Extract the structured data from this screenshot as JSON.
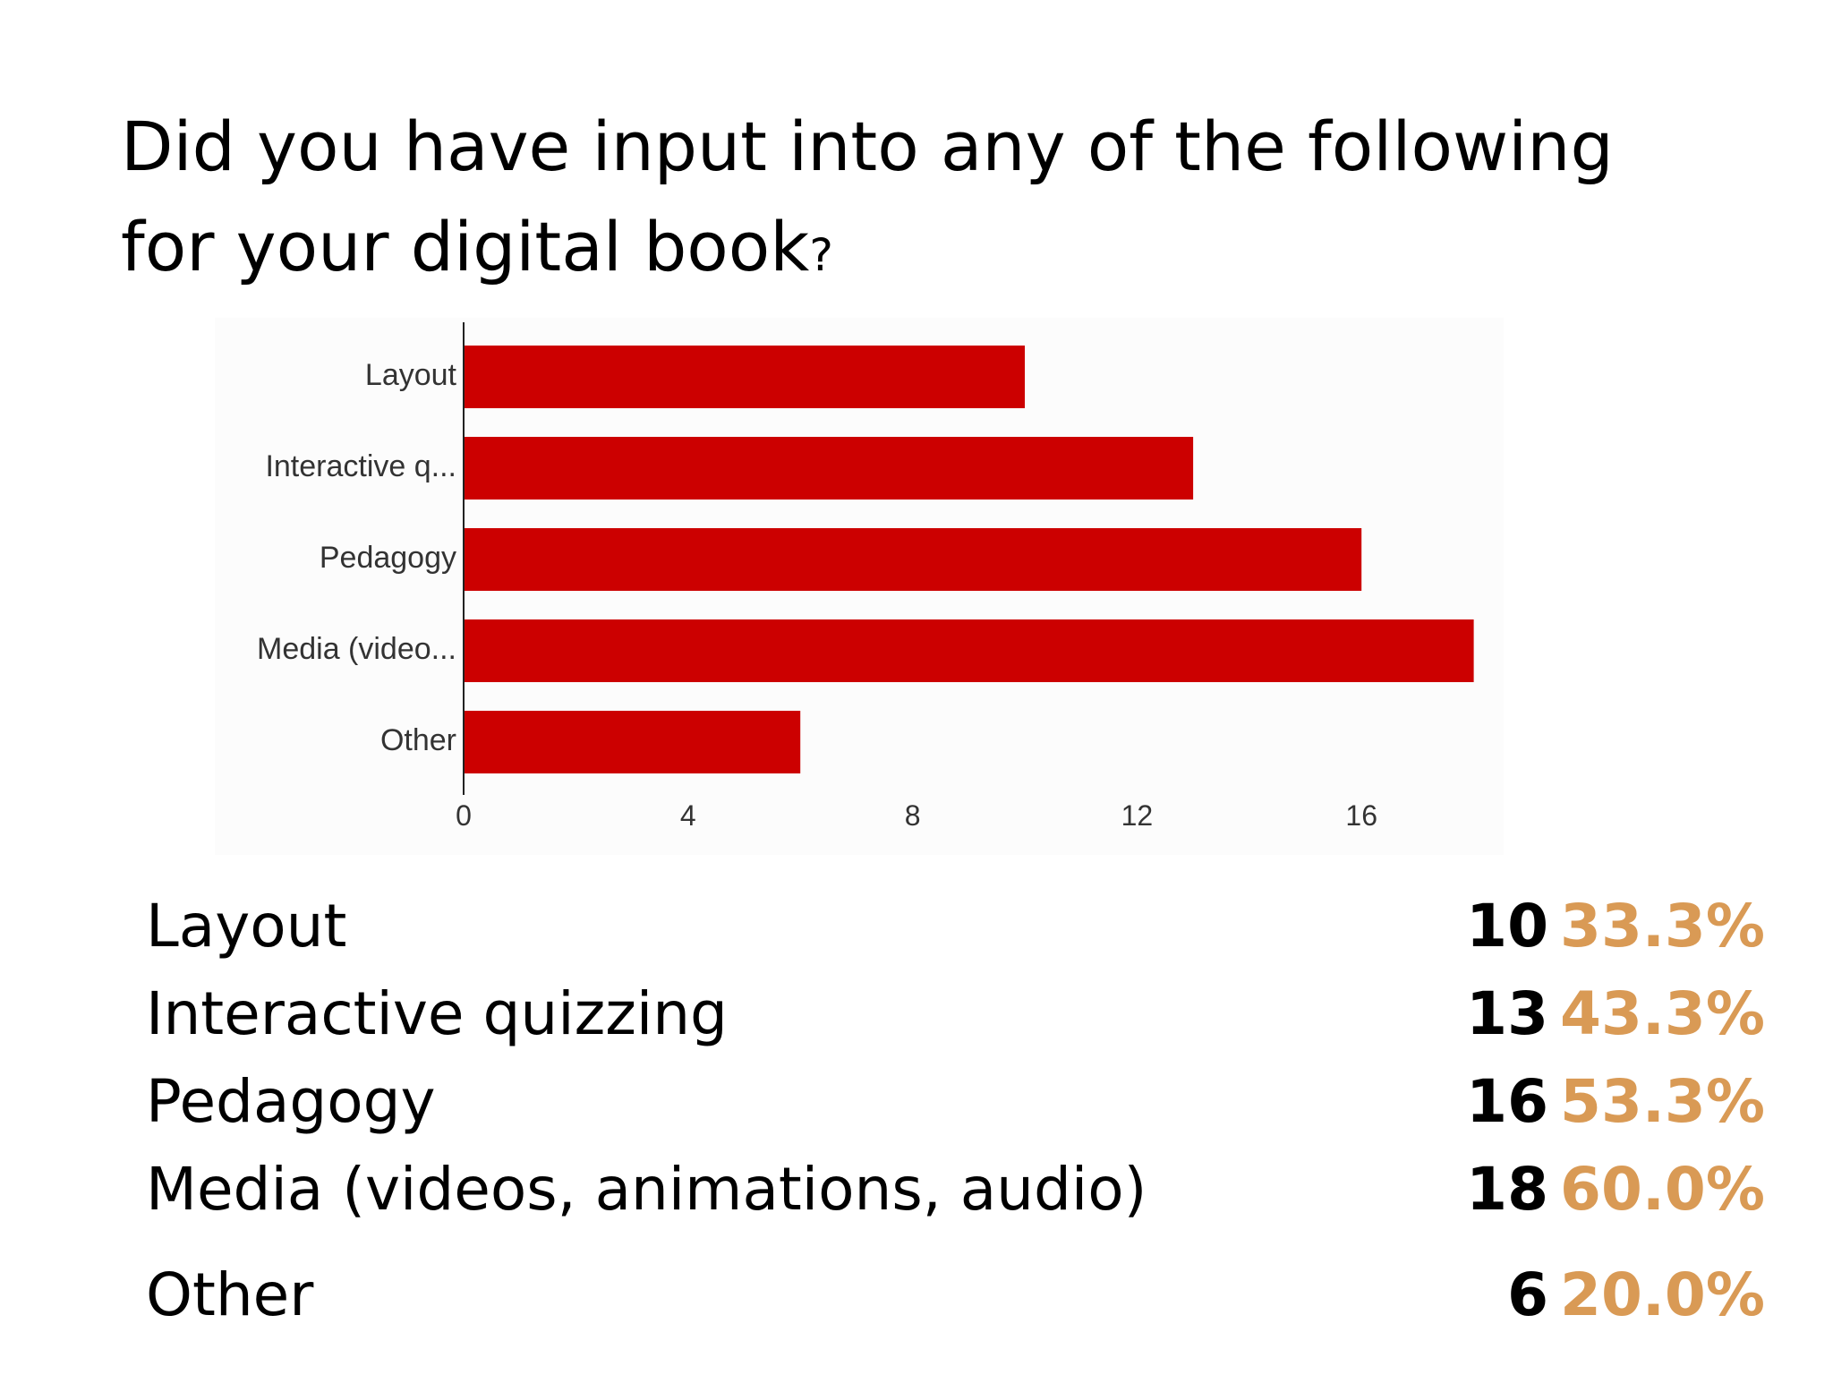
{
  "title": {
    "line1": "Did you have input into any of the following",
    "line2": "for your digital book",
    "question_mark": "?"
  },
  "chart_data": {
    "type": "bar",
    "orientation": "horizontal",
    "categories": [
      "Layout",
      "Interactive q...",
      "Pedagogy",
      "Media (video...",
      "Other"
    ],
    "values": [
      10,
      13,
      16,
      18,
      6
    ],
    "x_ticks": [
      "0",
      "4",
      "8",
      "12",
      "16"
    ],
    "xlim": [
      0,
      20
    ],
    "grid": false,
    "legend": "none",
    "bar_color": "#cc0000",
    "title": "",
    "xlabel": "",
    "ylabel": ""
  },
  "results": [
    {
      "label": "Layout",
      "count": "10",
      "percent": "33.3%"
    },
    {
      "label": "Interactive quizzing",
      "count": "13",
      "percent": "43.3%"
    },
    {
      "label": "Pedagogy",
      "count": "16",
      "percent": "53.3%"
    },
    {
      "label": "Media (videos, animations, audio)",
      "count": "18",
      "percent": "60.0%"
    },
    {
      "label": "Other",
      "count": "6",
      "percent": "20.0%"
    }
  ],
  "colors": {
    "bar": "#cc0000",
    "percent": "#d99a55",
    "text": "#000000",
    "axis_text": "#333333"
  }
}
